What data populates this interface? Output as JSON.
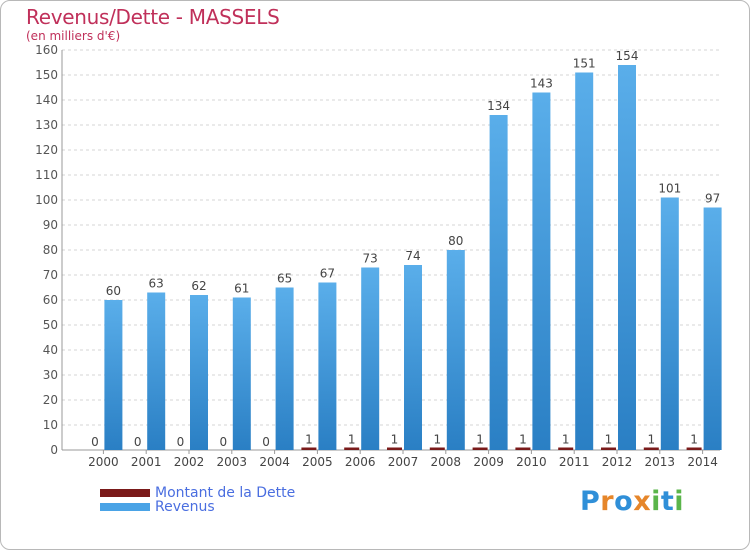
{
  "chart_data": {
    "type": "bar",
    "title": "Revenus/Dette - MASSELS",
    "subtitle": "(en milliers d'€)",
    "categories": [
      "2000",
      "2001",
      "2002",
      "2003",
      "2004",
      "2005",
      "2006",
      "2007",
      "2008",
      "2009",
      "2010",
      "2011",
      "2012",
      "2013",
      "2014"
    ],
    "series": [
      {
        "name": "Montant de la Dette",
        "color": "#7a1a1a",
        "values": [
          0,
          0,
          0,
          0,
          0,
          1,
          1,
          1,
          1,
          1,
          1,
          1,
          1,
          1,
          1
        ]
      },
      {
        "name": "Revenus",
        "color": "#4aa3e6",
        "values": [
          60,
          63,
          62,
          61,
          65,
          67,
          73,
          74,
          80,
          134,
          143,
          151,
          154,
          101,
          97
        ]
      }
    ],
    "ylim": [
      0,
      160
    ],
    "yticks": [
      0,
      10,
      20,
      30,
      40,
      50,
      60,
      70,
      80,
      90,
      100,
      110,
      120,
      130,
      140,
      150,
      160
    ],
    "grid": true,
    "legend_position": "bottom-left"
  },
  "legend": {
    "debt_label": "Montant de la Dette",
    "revenue_label": "Revenus"
  },
  "logo": {
    "text": "Proxiti",
    "letter_colors": [
      "#2f8fd8",
      "#e6862a",
      "#2f8fd8",
      "#e6862a",
      "#5ab54a",
      "#2f8fd8",
      "#5ab54a"
    ]
  }
}
